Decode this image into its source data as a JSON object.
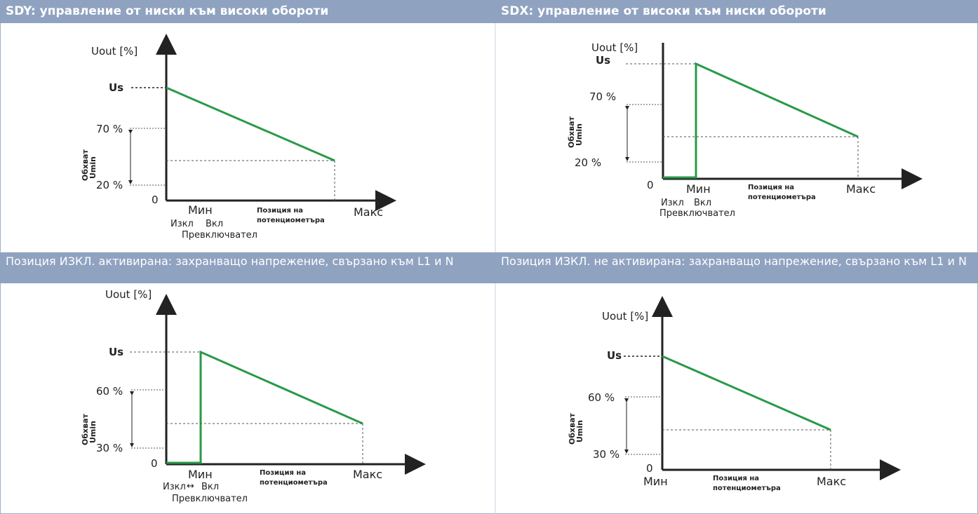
{
  "colors": {
    "header_bg": "#8fa2c0",
    "curve": "#2a9a48",
    "axis": "#222222",
    "grid_border": "#9fb0c8"
  },
  "panels": [
    {
      "header": "SDY: управление от ниски към високи обороти",
      "y_axis_label": "Uout [%]",
      "us_label": "Us",
      "range_high": "70 %",
      "range_low": "20 %",
      "zero": "0",
      "range_caption_line1": "Обхват",
      "range_caption_line2": "Umin",
      "x_min": "Мин",
      "x_pos_line1": "Позиция на",
      "x_pos_line2": "потенциометъра",
      "x_max": "Макс",
      "switch_off": "Изкл",
      "switch_on": "Вкл",
      "switch_caption": "Превключвател"
    },
    {
      "header": "SDX: управление от високи към ниски обороти",
      "y_axis_label": "Uout [%]",
      "us_label": "Us",
      "range_high": "70 %",
      "range_low": "20 %",
      "zero": "0",
      "range_caption_line1": "Обхват",
      "range_caption_line2": "Umin",
      "x_min": "Мин",
      "x_pos_line1": "Позиция на",
      "x_pos_line2": "потенциометъра",
      "x_max": "Макс",
      "switch_off": "Изкл",
      "switch_on": "Вкл",
      "switch_caption": "Превключвател"
    },
    {
      "header": "Позиция ИЗКЛ. активирана: захранващо напрежение, свързано към L1 и N",
      "y_axis_label": "Uout [%]",
      "us_label": "Us",
      "range_high": "60 %",
      "range_low": "30 %",
      "zero": "0",
      "range_caption_line1": "Обхват",
      "range_caption_line2": "Umin",
      "x_min": "Мин",
      "x_pos_line1": "Позиция на",
      "x_pos_line2": "потенциометъра",
      "x_max": "Макс",
      "switch_off": "Изкл",
      "switch_arrow": "↔",
      "switch_on": "Вкл",
      "switch_caption": "Превключвател"
    },
    {
      "header": "Позиция ИЗКЛ. не активирана: захранващо напрежение, свързано към L1 и N",
      "y_axis_label": "Uout [%]",
      "us_label": "Us",
      "range_high": "60 %",
      "range_low": "30 %",
      "zero": "0",
      "range_caption_line1": "Обхват",
      "range_caption_line2": "Umin",
      "x_min": "Мин",
      "x_pos_line1": "Позиция на",
      "x_pos_line2": "потенциометъра",
      "x_max": "Макс"
    }
  ]
}
